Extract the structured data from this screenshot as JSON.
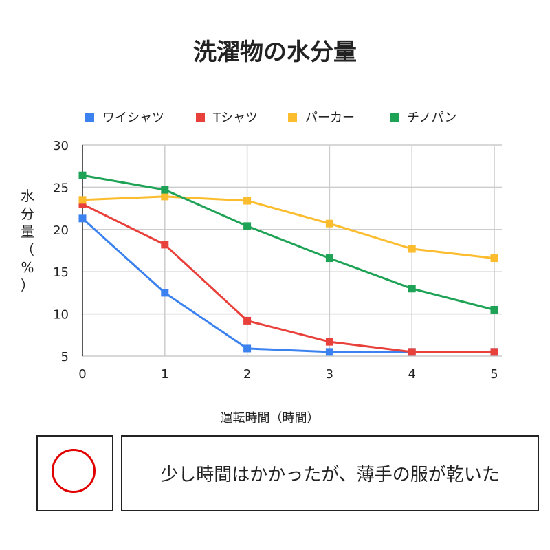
{
  "chart_data": {
    "type": "line",
    "title": "洗濯物の水分量",
    "xlabel": "運転時間（時間）",
    "ylabel": "水分量（%）",
    "x": [
      0,
      1,
      2,
      3,
      4,
      5
    ],
    "xlim": [
      0,
      5
    ],
    "ylim": [
      5,
      30
    ],
    "yticks": [
      5,
      10,
      15,
      20,
      25,
      30
    ],
    "grid": true,
    "legend_position": "top",
    "series": [
      {
        "name": "ワイシャツ",
        "color": "#3b82f0",
        "values": [
          21.3,
          12.5,
          5.9,
          5.5,
          5.5,
          5.5
        ]
      },
      {
        "name": "Tシャツ",
        "color": "#e8403a",
        "values": [
          23.0,
          18.2,
          9.2,
          6.7,
          5.5,
          5.5
        ]
      },
      {
        "name": "パーカー",
        "color": "#fbbc2d",
        "values": [
          23.5,
          23.9,
          23.4,
          20.7,
          17.7,
          16.6
        ]
      },
      {
        "name": "チノパン",
        "color": "#1ea356",
        "values": [
          26.4,
          24.7,
          20.4,
          16.6,
          13.0,
          10.5
        ]
      }
    ]
  },
  "verdict": {
    "mark": "circle-icon",
    "color": "#e00000"
  },
  "comment": "少し時間はかかったが、薄手の服が乾いた"
}
